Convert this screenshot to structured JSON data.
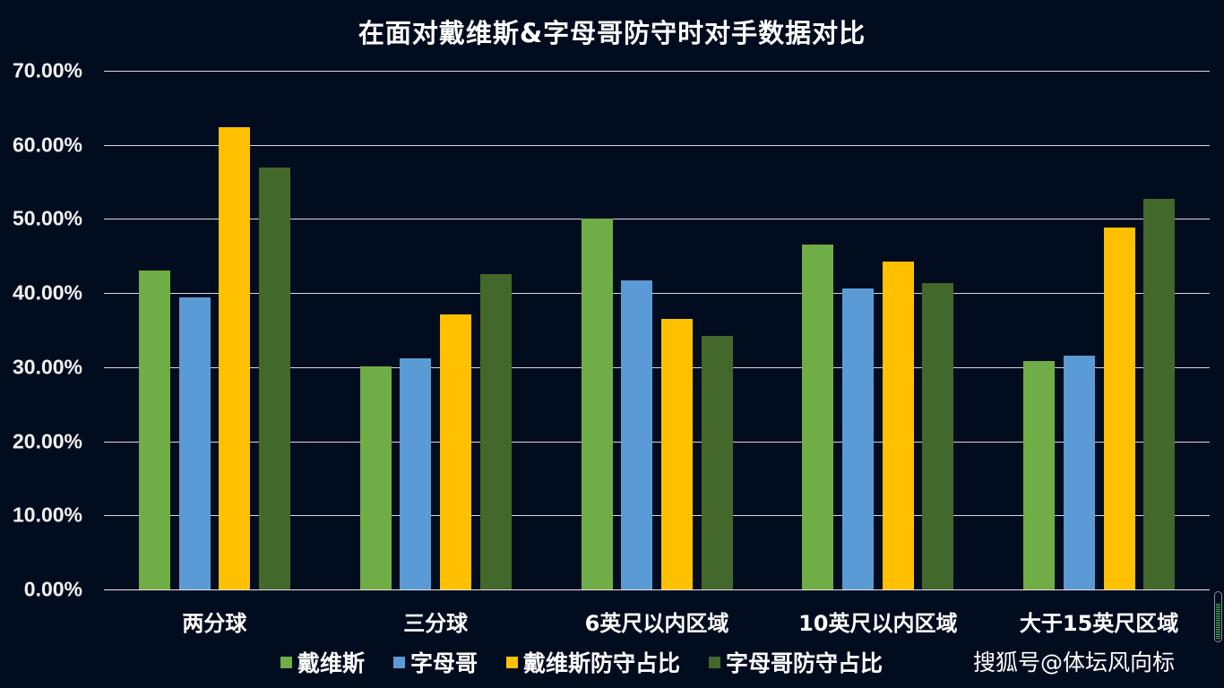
{
  "chart_data": {
    "type": "bar",
    "title": "在面对戴维斯&字母哥防守时对手数据对比",
    "categories": [
      "两分球",
      "三分球",
      "6英尺以内区域",
      "10英尺以内区域",
      "大于15英尺区域"
    ],
    "series": [
      {
        "name": "戴维斯",
        "color": "#70ad47",
        "values": [
          43.1,
          30.1,
          50.0,
          46.6,
          30.8
        ]
      },
      {
        "name": "字母哥",
        "color": "#5b9bd5",
        "values": [
          39.4,
          31.2,
          41.7,
          40.6,
          31.5
        ]
      },
      {
        "name": "戴维斯防守占比",
        "color": "#ffc000",
        "values": [
          62.4,
          37.1,
          36.5,
          44.3,
          48.8
        ]
      },
      {
        "name": "字母哥防守占比",
        "color": "#43682b",
        "values": [
          57.0,
          42.5,
          34.2,
          41.3,
          52.7
        ]
      }
    ],
    "xlabel": "",
    "ylabel": "",
    "ylim": [
      0,
      70
    ],
    "y_ticks": [
      "70.00%",
      "60.00%",
      "50.00%",
      "40.00%",
      "30.00%",
      "20.00%",
      "10.00%",
      "0.00%"
    ],
    "y_tick_format": "percent_2dp",
    "grid": true,
    "legend_position": "bottom"
  },
  "chart": {
    "title": "在面对戴维斯&字母哥防守时对手数据对比",
    "background": "#020c1f",
    "gridline_color": "#d6d8e0",
    "y_ticks": [
      "70.00%",
      "60.00%",
      "50.00%",
      "40.00%",
      "30.00%",
      "20.00%",
      "10.00%",
      "0.00%"
    ],
    "categories": [
      "两分球",
      "三分球",
      "6英尺以内区域",
      "10英尺以内区域",
      "大于15英尺区域"
    ],
    "legend": [
      {
        "label": "戴维斯",
        "color": "#70ad47"
      },
      {
        "label": "字母哥",
        "color": "#5b9bd5"
      },
      {
        "label": "戴维斯防守占比",
        "color": "#ffc000"
      },
      {
        "label": "字母哥防守占比",
        "color": "#43682b"
      }
    ]
  },
  "watermark": "搜狐号@体坛风向标",
  "level_meter": {
    "icon": "level-meter-icon",
    "color": "#4caf50"
  }
}
